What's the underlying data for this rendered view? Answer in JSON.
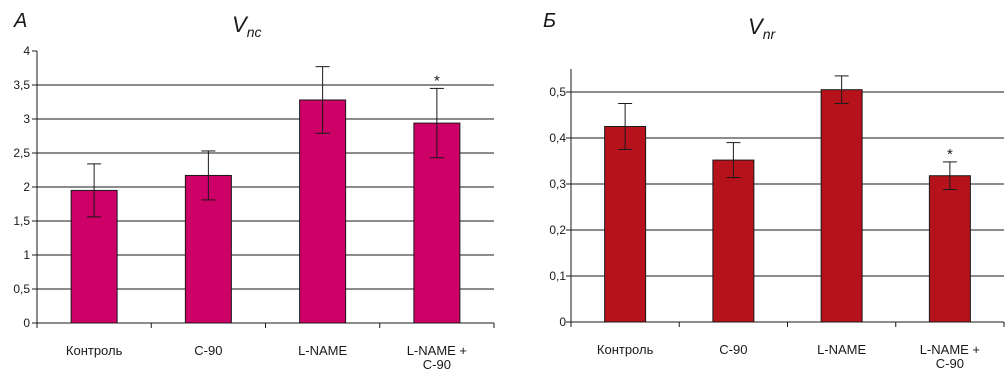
{
  "chart_data": [
    {
      "type": "bar",
      "panel_label": "А",
      "title_main": "V",
      "title_sub": "nc",
      "categories": [
        [
          "Контроль"
        ],
        [
          "С-90"
        ],
        [
          "L-NAME"
        ],
        [
          "L-NAME +",
          "С-90"
        ]
      ],
      "values": [
        1.95,
        2.17,
        3.28,
        2.94
      ],
      "errors": [
        0.39,
        0.36,
        0.49,
        0.51
      ],
      "significance": [
        "",
        "",
        "",
        "*"
      ],
      "ylim": [
        0,
        4
      ],
      "yticks": [
        0,
        0.5,
        1,
        1.5,
        2,
        2.5,
        3,
        3.5,
        4
      ],
      "ytick_labels": [
        "0",
        "0,5",
        "1",
        "1,5",
        "2",
        "2,5",
        "3",
        "3,5",
        "4"
      ],
      "gridlines": [
        0.5,
        1,
        1.5,
        2,
        2.5,
        3,
        3.5
      ],
      "bar_color": "#cc0066",
      "grid": true,
      "xlabel": "",
      "ylabel": ""
    },
    {
      "type": "bar",
      "panel_label": "Б",
      "title_main": "V",
      "title_sub": "nr",
      "categories": [
        [
          "Контроль"
        ],
        [
          "С-90"
        ],
        [
          "L-NAME"
        ],
        [
          "L-NAME +",
          "С-90"
        ]
      ],
      "values": [
        0.425,
        0.352,
        0.505,
        0.318
      ],
      "errors": [
        0.05,
        0.038,
        0.03,
        0.03
      ],
      "significance": [
        "",
        "",
        "",
        "*"
      ],
      "ylim": [
        0,
        0.55
      ],
      "yticks": [
        0,
        0.1,
        0.2,
        0.3,
        0.4,
        0.5
      ],
      "ytick_labels": [
        "0",
        "0,1",
        "0,2",
        "0,3",
        "0,4",
        "0,5"
      ],
      "gridlines": [
        0.1,
        0.2,
        0.3,
        0.4,
        0.5
      ],
      "bar_color": "#b5121b",
      "grid": true,
      "xlabel": "",
      "ylabel": ""
    }
  ]
}
